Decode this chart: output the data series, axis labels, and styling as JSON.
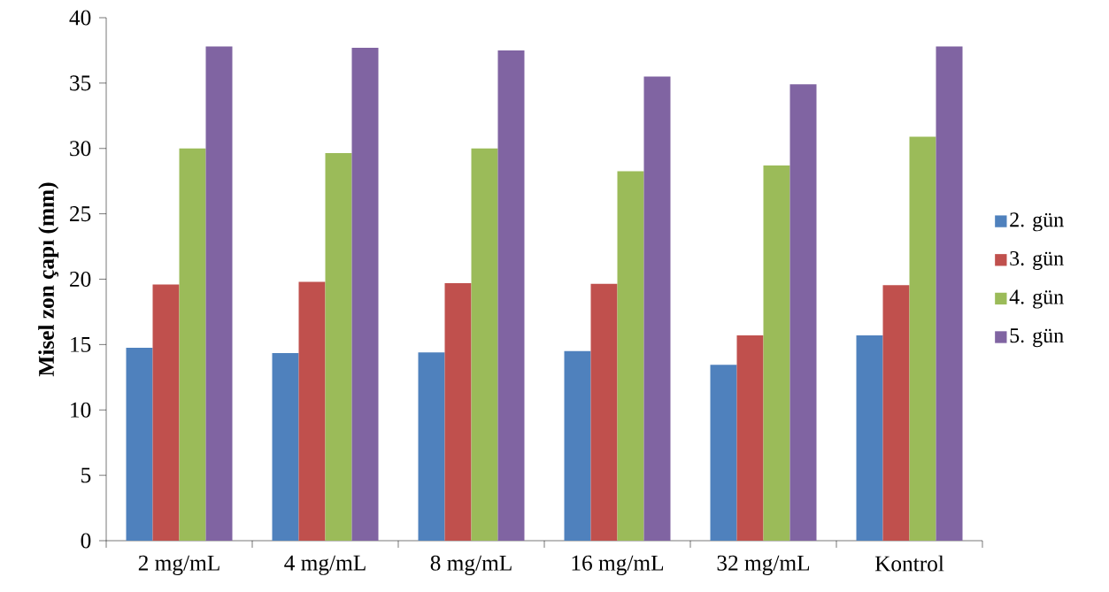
{
  "chart_data": {
    "type": "bar",
    "ylabel": "Misel zon çapı (mm)",
    "categories": [
      "2 mg/mL",
      "4  mg/mL",
      "8  mg/mL",
      "16 mg/mL",
      "32 mg/mL",
      "Kontrol"
    ],
    "series": [
      {
        "name": "2. gün",
        "color": "#4f81bd",
        "values": [
          14.75,
          14.35,
          14.4,
          14.5,
          13.45,
          15.7
        ]
      },
      {
        "name": "3. gün",
        "color": "#c0504d",
        "values": [
          19.6,
          19.8,
          19.7,
          19.65,
          15.7,
          19.55
        ]
      },
      {
        "name": "4. gün",
        "color": "#9bbb59",
        "values": [
          30.0,
          29.65,
          30.0,
          28.25,
          28.7,
          30.9
        ]
      },
      {
        "name": "5. gün",
        "color": "#8064a2",
        "values": [
          37.8,
          37.7,
          37.5,
          35.5,
          34.9,
          37.8
        ]
      }
    ],
    "ylim": [
      0,
      40
    ],
    "yticks": [
      0,
      5,
      10,
      15,
      20,
      25,
      30,
      35,
      40
    ],
    "grid": false,
    "legend": "right"
  }
}
